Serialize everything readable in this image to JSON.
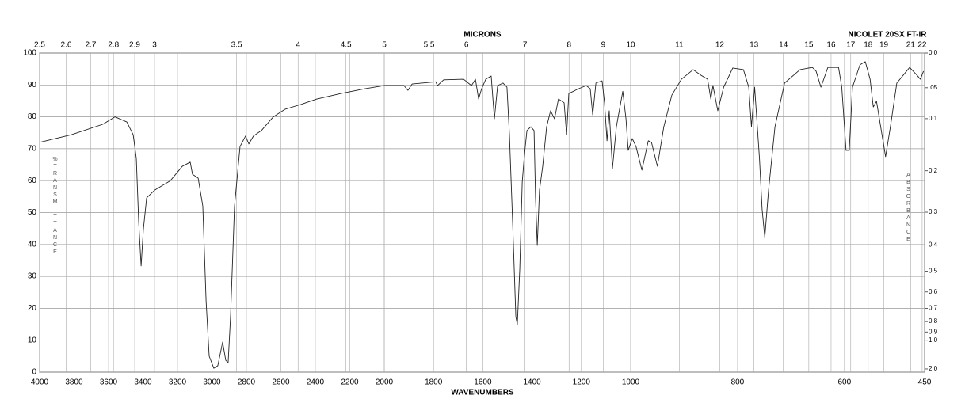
{
  "chart_data": {
    "type": "line",
    "title": "NICOLET 20SX FT-IR",
    "xlabel": "WAVENUMBERS",
    "x2label": "MICRONS",
    "ylabel": "%TRANSMITTANCE",
    "y2label": "ABSORBANCE",
    "xlim": [
      4000,
      450
    ],
    "xbreaks": [
      2000,
      1000
    ],
    "ylim": [
      0,
      100
    ],
    "grid": true,
    "color": "#222222",
    "xticks": [
      4000,
      3800,
      3600,
      3400,
      3200,
      3000,
      2800,
      2600,
      2400,
      2200,
      2000,
      1800,
      1600,
      1400,
      1200,
      1000,
      800,
      600,
      450
    ],
    "yticks": [
      0,
      10,
      20,
      30,
      40,
      50,
      60,
      70,
      80,
      90,
      100
    ],
    "x2ticks": [
      2.5,
      2.6,
      2.7,
      2.8,
      2.9,
      3,
      3.5,
      4,
      4.5,
      5,
      5.5,
      6,
      7,
      8,
      9,
      10,
      11,
      12,
      13,
      14,
      15,
      16,
      17,
      18,
      19,
      21,
      22
    ],
    "y2_scale": "absorbance",
    "y2ticks": [
      {
        "value": 0,
        "label": "0.0"
      },
      {
        "value": 0.05,
        "label": ".05"
      },
      0.1,
      0.2,
      0.3,
      0.4,
      0.5,
      0.6,
      0.7,
      0.8,
      0.9,
      {
        "value": 1,
        "label": "1.0"
      },
      {
        "value": 2,
        "label": "2.0"
      }
    ],
    "x": [
      4000,
      3816,
      3632,
      3563,
      3494,
      3457,
      3439,
      3425,
      3411,
      3398,
      3379,
      3333,
      3241,
      3172,
      3126,
      3113,
      3080,
      3053,
      3034,
      3016,
      2989,
      2966,
      2938,
      2920,
      2906,
      2892,
      2869,
      2837,
      2805,
      2786,
      2759,
      2713,
      2644,
      2575,
      2483,
      2391,
      2253,
      2115,
      2000,
      1920,
      1904,
      1887,
      1791,
      1784,
      1759,
      1678,
      1646,
      1630,
      1617,
      1605,
      1588,
      1566,
      1553,
      1540,
      1518,
      1502,
      1492,
      1479,
      1466,
      1460,
      1450,
      1440,
      1431,
      1421,
      1405,
      1392,
      1386,
      1379,
      1370,
      1357,
      1341,
      1325,
      1309,
      1293,
      1270,
      1260,
      1251,
      1212,
      1180,
      1164,
      1154,
      1141,
      1116,
      1106,
      1096,
      1087,
      1074,
      1058,
      1032,
      1019,
      1010,
      997,
      990,
      979,
      967,
      961,
      950,
      938,
      923,
      905,
      883,
      868,
      856,
      850,
      846,
      837,
      826,
      809,
      789,
      779,
      774,
      768,
      759,
      754,
      749,
      742,
      730,
      712,
      683,
      660,
      653,
      644,
      631,
      611,
      605,
      597,
      591,
      585,
      571,
      561,
      552,
      546,
      540,
      531,
      523,
      514,
      502,
      478,
      464,
      458,
      452
    ],
    "values": [
      72,
      74.4,
      77.7,
      80,
      78.4,
      74.4,
      67,
      47,
      33.3,
      44.7,
      54.6,
      57,
      60,
      64.5,
      65.8,
      62,
      60.8,
      52,
      22.3,
      5,
      1.2,
      2,
      9.4,
      3.7,
      3,
      17.4,
      52,
      70.7,
      74,
      71.5,
      74,
      75.7,
      80,
      82.4,
      83.9,
      85.6,
      87.3,
      88.8,
      89.8,
      89.8,
      88.3,
      90.3,
      91,
      89.8,
      91.6,
      91.8,
      89.8,
      91.8,
      85.6,
      88.8,
      91.8,
      92.8,
      79.4,
      89.8,
      90.6,
      89.3,
      74.4,
      47,
      17.4,
      14.9,
      32.3,
      59.6,
      68.2,
      75.7,
      76.9,
      75.7,
      54.6,
      39.7,
      57,
      64.5,
      76.9,
      81.9,
      79.4,
      85.6,
      84.4,
      74.4,
      87.3,
      88.8,
      89.8,
      88.8,
      80.6,
      90.6,
      91.3,
      84.4,
      72.5,
      81.9,
      63.8,
      76.9,
      88,
      79.4,
      69.5,
      73.2,
      70.7,
      63.3,
      72.5,
      72,
      64.5,
      76.9,
      86.8,
      91.8,
      94.8,
      93,
      91.8,
      85.6,
      89.8,
      81.9,
      89.3,
      95.3,
      94.8,
      89.3,
      76.9,
      89.3,
      67,
      50.9,
      42.2,
      57,
      76.9,
      90.6,
      94.8,
      95.5,
      94.3,
      89.3,
      95.5,
      95.5,
      89.3,
      69.5,
      69.5,
      89.3,
      96.3,
      97.3,
      91.8,
      83.1,
      84.9,
      75.7,
      67.5,
      76.9,
      90.6,
      95.5,
      93,
      91.8,
      94.3
    ]
  }
}
